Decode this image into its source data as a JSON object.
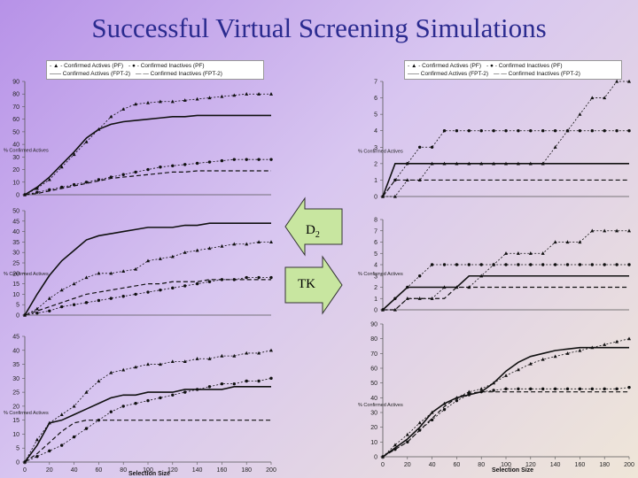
{
  "slide": {
    "title": "Successful Virtual Screening Simulations"
  },
  "arrows": {
    "d2_main": "D",
    "d2_sub": "2",
    "tk": "TK"
  },
  "xlabel_left": "Selection Size",
  "xlabel_right": "Selection Size",
  "chart_data": [
    {
      "type": "line",
      "title": "",
      "legend": [
        "Confirmed Actives (PF)",
        "Confirmed Inactives (PF)",
        "Confirmed Actives (FPT-2)",
        "Confirmed Inactives (FPT-2)"
      ],
      "ylabel": "% Confirmed Actives",
      "x": [
        0,
        10,
        20,
        30,
        40,
        50,
        60,
        70,
        80,
        90,
        100,
        110,
        120,
        130,
        140,
        150,
        160,
        170,
        180,
        190,
        200
      ],
      "ylim": [
        0,
        90
      ],
      "yticks": [
        0,
        10,
        20,
        30,
        40,
        50,
        60,
        70,
        80,
        90
      ],
      "xticks": [],
      "series": [
        {
          "name": "Confirmed Actives (PF)",
          "values": [
            0,
            5,
            12,
            22,
            32,
            42,
            52,
            62,
            68,
            72,
            73,
            74,
            74,
            75,
            76,
            77,
            78,
            79,
            80,
            80,
            80
          ]
        },
        {
          "name": "Confirmed Inactives (PF)",
          "values": [
            0,
            2,
            4,
            6,
            8,
            10,
            12,
            14,
            16,
            18,
            20,
            22,
            23,
            24,
            25,
            26,
            27,
            28,
            28,
            28,
            28
          ]
        },
        {
          "name": "Confirmed Actives (FPT-2)",
          "values": [
            0,
            6,
            14,
            24,
            34,
            45,
            52,
            56,
            58,
            59,
            60,
            61,
            62,
            62,
            63,
            63,
            63,
            63,
            63,
            63,
            63
          ]
        },
        {
          "name": "Confirmed Inactives (FPT-2)",
          "values": [
            0,
            1,
            3,
            5,
            7,
            9,
            11,
            13,
            14,
            15,
            16,
            17,
            18,
            18,
            19,
            19,
            19,
            19,
            19,
            19,
            19
          ]
        }
      ]
    },
    {
      "type": "line",
      "title": "",
      "legend": [],
      "ylabel": "% Confirmed Actives",
      "x": [
        0,
        10,
        20,
        30,
        40,
        50,
        60,
        70,
        80,
        90,
        100,
        110,
        120,
        130,
        140,
        150,
        160,
        170,
        180,
        190,
        200
      ],
      "ylim": [
        0,
        50
      ],
      "yticks": [
        0,
        5,
        10,
        15,
        20,
        25,
        30,
        35,
        40,
        45,
        50
      ],
      "xticks": [],
      "series": [
        {
          "name": "Confirmed Actives (PF)",
          "values": [
            0,
            3,
            8,
            12,
            15,
            18,
            20,
            20,
            21,
            22,
            26,
            27,
            28,
            30,
            31,
            32,
            33,
            34,
            34,
            35,
            35
          ]
        },
        {
          "name": "Confirmed Inactives (PF)",
          "values": [
            0,
            1,
            2,
            4,
            5,
            6,
            7,
            8,
            9,
            10,
            11,
            12,
            13,
            14,
            15,
            16,
            17,
            17,
            18,
            18,
            18
          ]
        },
        {
          "name": "Confirmed Actives (FPT-2)",
          "values": [
            0,
            10,
            19,
            26,
            31,
            36,
            38,
            39,
            40,
            41,
            42,
            42,
            42,
            43,
            43,
            44,
            44,
            44,
            44,
            44,
            44
          ]
        },
        {
          "name": "Confirmed Inactives (FPT-2)",
          "values": [
            0,
            2,
            4,
            6,
            8,
            10,
            11,
            12,
            13,
            14,
            15,
            15,
            16,
            16,
            16,
            17,
            17,
            17,
            17,
            17,
            17
          ]
        }
      ]
    },
    {
      "type": "line",
      "title": "",
      "legend": [],
      "ylabel": "% Confirmed Actives",
      "x": [
        0,
        10,
        20,
        30,
        40,
        50,
        60,
        70,
        80,
        90,
        100,
        110,
        120,
        130,
        140,
        150,
        160,
        170,
        180,
        190,
        200
      ],
      "ylim": [
        0,
        45
      ],
      "yticks": [
        0,
        5,
        10,
        15,
        20,
        25,
        30,
        35,
        40,
        45
      ],
      "xticks": [
        0,
        20,
        40,
        60,
        80,
        100,
        120,
        140,
        160,
        180,
        200
      ],
      "series": [
        {
          "name": "Confirmed Actives (PF)",
          "values": [
            0,
            8,
            14,
            17,
            20,
            25,
            29,
            32,
            33,
            34,
            35,
            35,
            36,
            36,
            37,
            37,
            38,
            38,
            39,
            39,
            40
          ]
        },
        {
          "name": "Confirmed Inactives (PF)",
          "values": [
            0,
            2,
            4,
            6,
            9,
            12,
            15,
            18,
            20,
            21,
            22,
            23,
            24,
            25,
            26,
            27,
            28,
            28,
            29,
            29,
            30
          ]
        },
        {
          "name": "Confirmed Actives (FPT-2)",
          "values": [
            0,
            6,
            14,
            15,
            17,
            19,
            21,
            23,
            24,
            24,
            25,
            25,
            25,
            26,
            26,
            26,
            26,
            27,
            27,
            27,
            27
          ]
        },
        {
          "name": "Confirmed Inactives (FPT-2)",
          "values": [
            0,
            3,
            7,
            11,
            14,
            15,
            15,
            15,
            15,
            15,
            15,
            15,
            15,
            15,
            15,
            15,
            15,
            15,
            15,
            15,
            15
          ]
        }
      ]
    },
    {
      "type": "line",
      "title": "",
      "legend": [
        "Confirmed Actives (PF)",
        "Confirmed Inactives (PF)",
        "Confirmed Actives (FPT-2)",
        "Confirmed Inactives (FPT-2)"
      ],
      "ylabel": "% Confirmed Actives",
      "x": [
        0,
        10,
        20,
        30,
        40,
        50,
        60,
        70,
        80,
        90,
        100,
        110,
        120,
        130,
        140,
        150,
        160,
        170,
        180,
        190,
        200
      ],
      "ylim": [
        0,
        7
      ],
      "yticks": [
        0,
        1,
        2,
        3,
        4,
        5,
        6,
        7
      ],
      "xticks": [],
      "series": [
        {
          "name": "Confirmed Actives (PF)",
          "values": [
            0,
            0,
            1,
            1,
            2,
            2,
            2,
            2,
            2,
            2,
            2,
            2,
            2,
            2,
            3,
            4,
            5,
            6,
            6,
            7,
            7
          ]
        },
        {
          "name": "Confirmed Inactives (PF)",
          "values": [
            0,
            1,
            2,
            3,
            3,
            4,
            4,
            4,
            4,
            4,
            4,
            4,
            4,
            4,
            4,
            4,
            4,
            4,
            4,
            4,
            4
          ]
        },
        {
          "name": "Confirmed Actives (FPT-2)",
          "values": [
            0,
            2,
            2,
            2,
            2,
            2,
            2,
            2,
            2,
            2,
            2,
            2,
            2,
            2,
            2,
            2,
            2,
            2,
            2,
            2,
            2
          ]
        },
        {
          "name": "Confirmed Inactives (FPT-2)",
          "values": [
            0,
            1,
            1,
            1,
            1,
            1,
            1,
            1,
            1,
            1,
            1,
            1,
            1,
            1,
            1,
            1,
            1,
            1,
            1,
            1,
            1
          ]
        }
      ]
    },
    {
      "type": "line",
      "title": "",
      "legend": [],
      "ylabel": "% Confirmed Actives",
      "x": [
        0,
        10,
        20,
        30,
        40,
        50,
        60,
        70,
        80,
        90,
        100,
        110,
        120,
        130,
        140,
        150,
        160,
        170,
        180,
        190,
        200
      ],
      "ylim": [
        0,
        8
      ],
      "yticks": [
        0,
        1,
        2,
        3,
        4,
        5,
        6,
        7,
        8
      ],
      "xticks": [],
      "series": [
        {
          "name": "Confirmed Actives (PF)",
          "values": [
            0,
            0,
            1,
            1,
            1,
            2,
            2,
            2,
            3,
            4,
            5,
            5,
            5,
            5,
            6,
            6,
            6,
            7,
            7,
            7,
            7
          ]
        },
        {
          "name": "Confirmed Inactives (PF)",
          "values": [
            0,
            1,
            2,
            3,
            4,
            4,
            4,
            4,
            4,
            4,
            4,
            4,
            4,
            4,
            4,
            4,
            4,
            4,
            4,
            4,
            4
          ]
        },
        {
          "name": "Confirmed Actives (FPT-2)",
          "values": [
            0,
            1,
            2,
            2,
            2,
            2,
            2,
            3,
            3,
            3,
            3,
            3,
            3,
            3,
            3,
            3,
            3,
            3,
            3,
            3,
            3
          ]
        },
        {
          "name": "Confirmed Inactives (FPT-2)",
          "values": [
            0,
            0,
            1,
            1,
            1,
            1,
            2,
            2,
            2,
            2,
            2,
            2,
            2,
            2,
            2,
            2,
            2,
            2,
            2,
            2,
            2
          ]
        }
      ]
    },
    {
      "type": "line",
      "title": "",
      "legend": [],
      "ylabel": "% Confirmed Actives",
      "x": [
        0,
        10,
        20,
        30,
        40,
        50,
        60,
        70,
        80,
        90,
        100,
        110,
        120,
        130,
        140,
        150,
        160,
        170,
        180,
        190,
        200
      ],
      "ylim": [
        0,
        90
      ],
      "yticks": [
        0,
        10,
        20,
        30,
        40,
        50,
        60,
        70,
        80,
        90
      ],
      "xticks": [
        0,
        20,
        40,
        60,
        80,
        100,
        120,
        140,
        160,
        180,
        200
      ],
      "series": [
        {
          "name": "Confirmed Actives (PF)",
          "values": [
            0,
            8,
            15,
            23,
            30,
            36,
            40,
            44,
            46,
            50,
            55,
            59,
            63,
            66,
            68,
            70,
            72,
            74,
            76,
            78,
            80
          ]
        },
        {
          "name": "Confirmed Inactives (PF)",
          "values": [
            0,
            5,
            10,
            18,
            25,
            32,
            38,
            42,
            44,
            45,
            46,
            46,
            46,
            46,
            46,
            46,
            46,
            46,
            46,
            46,
            47
          ]
        },
        {
          "name": "Confirmed Actives (FPT-2)",
          "values": [
            0,
            6,
            12,
            20,
            30,
            36,
            40,
            42,
            44,
            50,
            58,
            64,
            68,
            70,
            72,
            73,
            74,
            74,
            74,
            74,
            74
          ]
        },
        {
          "name": "Confirmed Inactives (FPT-2)",
          "values": [
            0,
            5,
            10,
            18,
            26,
            34,
            40,
            43,
            44,
            44,
            44,
            44,
            44,
            44,
            44,
            44,
            44,
            44,
            44,
            44,
            44
          ]
        }
      ]
    }
  ]
}
